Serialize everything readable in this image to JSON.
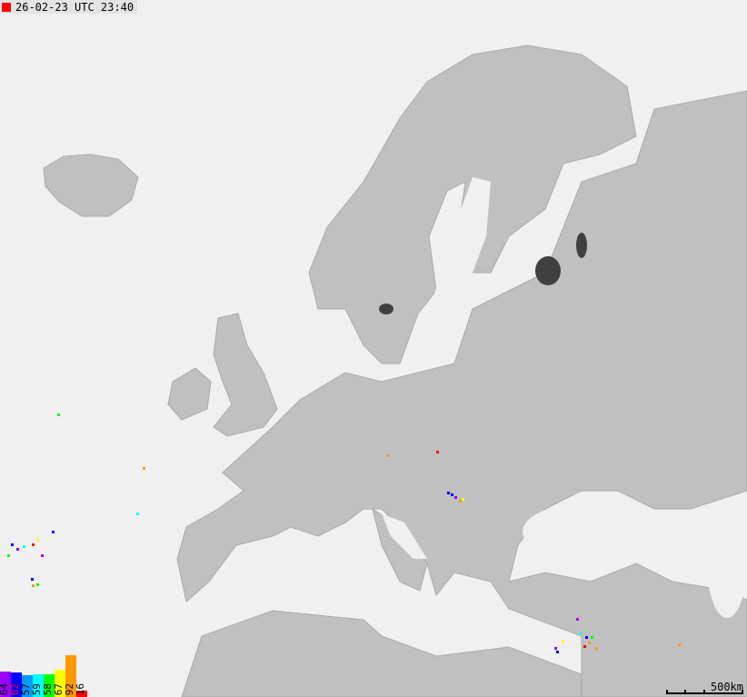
{
  "timestamp": {
    "text": "26-02-23 UTC 23:40",
    "indicator_color": "#ff0000"
  },
  "colors": {
    "sea": "#f0f0f0",
    "land": "#c0c0c0",
    "lakes": "#404040",
    "borders": "#888888"
  },
  "legend": [
    {
      "count": "64",
      "color": "#9900ff",
      "level": 0.38
    },
    {
      "count": "62",
      "color": "#0000ff",
      "level": 0.36,
      "text_color": "#ff0000"
    },
    {
      "count": "57",
      "color": "#0099ff",
      "level": 0.32
    },
    {
      "count": "59",
      "color": "#00ffff",
      "level": 0.34
    },
    {
      "count": "58",
      "color": "#00ff00",
      "level": 0.34
    },
    {
      "count": "67",
      "color": "#ffff00",
      "level": 0.4
    },
    {
      "count": "92",
      "color": "#ff9900",
      "level": 0.62
    },
    {
      "count": "16",
      "color": "#ff0000",
      "level": 0.1
    }
  ],
  "scale": {
    "label": "500km"
  }
}
